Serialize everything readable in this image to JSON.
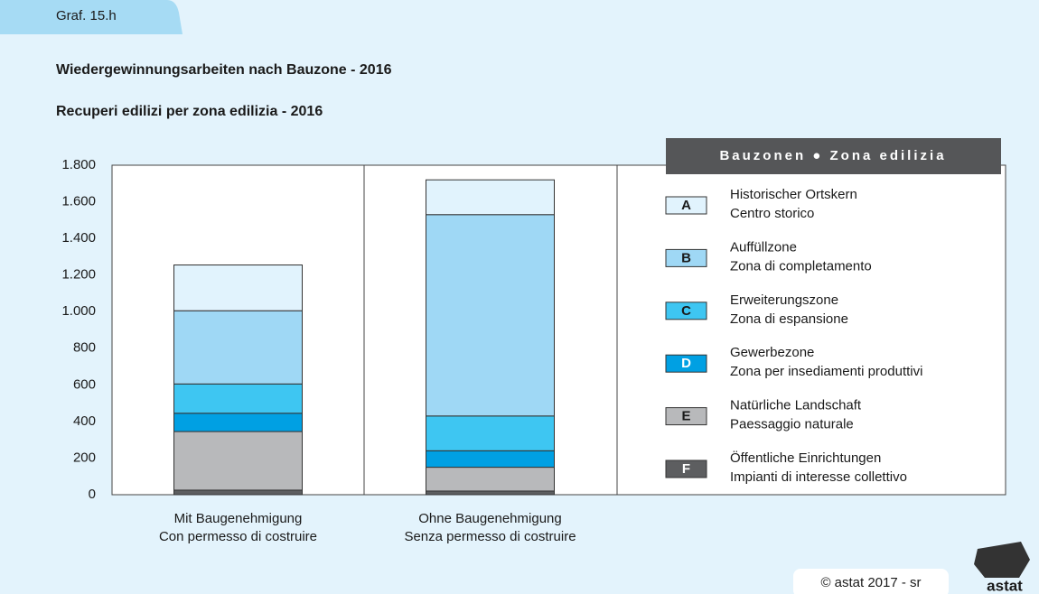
{
  "chart_data": {
    "type": "stacked-bar",
    "tag": "Graf. 15.h",
    "title": "Wiedergewinnungsarbeiten nach Bauzone - 2016",
    "subtitle": "Recuperi edilizi per zona edilizia - 2016",
    "legend_title": "Bauzonen ● Zona edilizia",
    "legend_position": "right",
    "grid": false,
    "categories": [
      [
        "Mit Baugenehmigung",
        "Con permesso di costruire"
      ],
      [
        "Ohne Baugenehmigung",
        "Senza permesso di costruire"
      ]
    ],
    "ylim": [
      0,
      1800
    ],
    "yticks": [
      0,
      200,
      400,
      600,
      800,
      {
        "value": 1000,
        "label": "1.000"
      },
      {
        "value": 1200,
        "label": "1.200"
      },
      {
        "value": 1400,
        "label": "1.400"
      },
      {
        "value": 1600,
        "label": "1.600"
      },
      {
        "value": 1800,
        "label": "1.800"
      }
    ],
    "series": [
      {
        "key": "F",
        "name": [
          "Öffentliche Einrichtungen",
          "Impianti di interesse collettivo"
        ],
        "color": "#5d5e60",
        "values": [
          25,
          20
        ]
      },
      {
        "key": "E",
        "name": [
          "Natürliche Landschaft",
          "Paessaggio naturale"
        ],
        "color": "#b8b9bb",
        "values": [
          320,
          130
        ]
      },
      {
        "key": "D",
        "name": [
          "Gewerbezone",
          "Zona per insediamenti produttivi"
        ],
        "color": "#00a0e3",
        "values": [
          100,
          90
        ]
      },
      {
        "key": "C",
        "name": [
          "Erweiterungszone",
          "Zona di espansione"
        ],
        "color": "#3ec6f2",
        "values": [
          160,
          190
        ]
      },
      {
        "key": "B",
        "name": [
          "Auffüllzone",
          "Zona di completamento"
        ],
        "color": "#9fd8f5",
        "values": [
          400,
          1100
        ]
      },
      {
        "key": "A",
        "name": [
          "Historischer Ortskern",
          "Centro storico"
        ],
        "color": "#e1f3fd",
        "values": [
          250,
          190
        ]
      }
    ],
    "footer": "© astat 2017 - sr",
    "logo": "astat"
  }
}
